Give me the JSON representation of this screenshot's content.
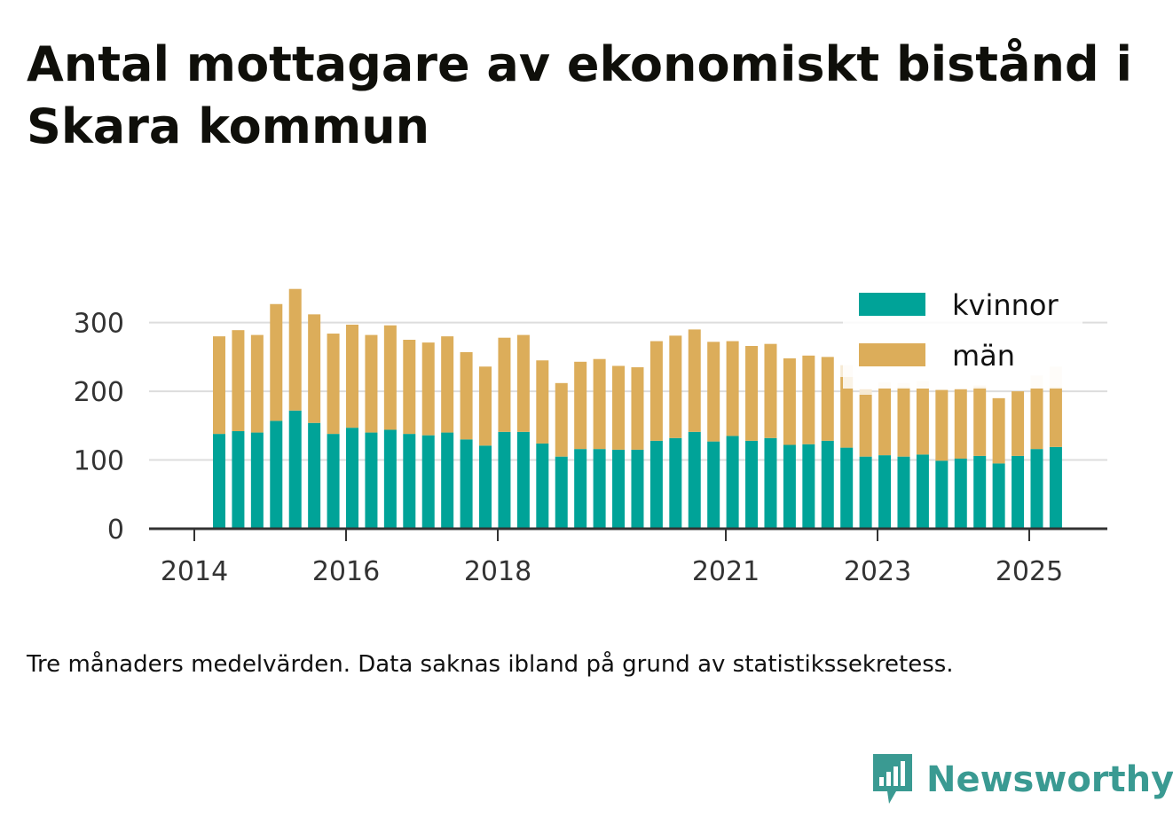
{
  "title": "Antal mottagare av ekonomiskt bistånd i Skara kommun",
  "caption": "Tre månaders medelvärden. Data saknas ibland på grund av statistikssekretess.",
  "brand": {
    "name": "Newsworthy",
    "icon": "newsworthy-logo-icon"
  },
  "colors": {
    "kvinnor": "#00a398",
    "man": "#dcad5a",
    "man_faded": "#f6ead4",
    "axis": "#333333",
    "grid": "#dddddd"
  },
  "chart_data": {
    "type": "bar",
    "stacked": true,
    "x_ticks": [
      "2014",
      "2016",
      "2018",
      "2021",
      "2023",
      "2025"
    ],
    "y_ticks": [
      "0",
      "100",
      "200",
      "300"
    ],
    "ylim": [
      0,
      360
    ],
    "legend_position": "top-right",
    "grid": true,
    "categories": [
      "2014-Q2",
      "2014-Q3",
      "2014-Q4",
      "2015-Q1",
      "2015-Q2",
      "2015-Q3",
      "2015-Q4",
      "2016-Q1",
      "2016-Q2",
      "2016-Q3",
      "2016-Q4",
      "2017-Q1",
      "2017-Q2",
      "2017-Q3",
      "2017-Q4",
      "2018-Q1",
      "2018-Q2",
      "2018-Q3",
      "2018-Q4",
      "2019-Q1",
      "2019-Q2",
      "2019-Q3",
      "2019-Q4",
      "2020-Q1",
      "2020-Q2",
      "2020-Q3",
      "2020-Q4",
      "2021-Q1",
      "2021-Q2",
      "2021-Q3",
      "2021-Q4",
      "2022-Q1",
      "2022-Q2",
      "2022-Q3",
      "2022-Q4",
      "2023-Q1",
      "2023-Q2",
      "2023-Q3",
      "2023-Q4",
      "2024-Q1",
      "2024-Q2",
      "2024-Q3",
      "2024-Q4",
      "2025-Q1",
      "2025-Q2"
    ],
    "series": [
      {
        "name": "kvinnor",
        "values": [
          138,
          142,
          140,
          157,
          172,
          154,
          138,
          147,
          140,
          144,
          138,
          136,
          140,
          130,
          121,
          141,
          141,
          124,
          105,
          116,
          116,
          115,
          115,
          128,
          132,
          141,
          127,
          135,
          128,
          132,
          122,
          123,
          128,
          118,
          105,
          107,
          105,
          108,
          99,
          102,
          106,
          95,
          106,
          116,
          119
        ]
      },
      {
        "name": "män",
        "values": [
          142,
          147,
          142,
          170,
          177,
          158,
          146,
          150,
          142,
          152,
          137,
          135,
          140,
          127,
          115,
          137,
          141,
          121,
          107,
          127,
          131,
          122,
          120,
          145,
          149,
          149,
          145,
          138,
          138,
          137,
          126,
          129,
          122,
          103,
          90,
          98,
          101,
          96,
          103,
          101,
          101,
          95,
          94,
          89,
          87
        ]
      }
    ],
    "faded_top": [
      null,
      null,
      null,
      null,
      null,
      null,
      null,
      null,
      null,
      null,
      null,
      null,
      null,
      null,
      null,
      null,
      null,
      null,
      null,
      null,
      null,
      null,
      null,
      null,
      null,
      null,
      null,
      null,
      null,
      null,
      null,
      null,
      null,
      17,
      8,
      8,
      6,
      11,
      null,
      null,
      2,
      null,
      null,
      18,
      30
    ]
  }
}
